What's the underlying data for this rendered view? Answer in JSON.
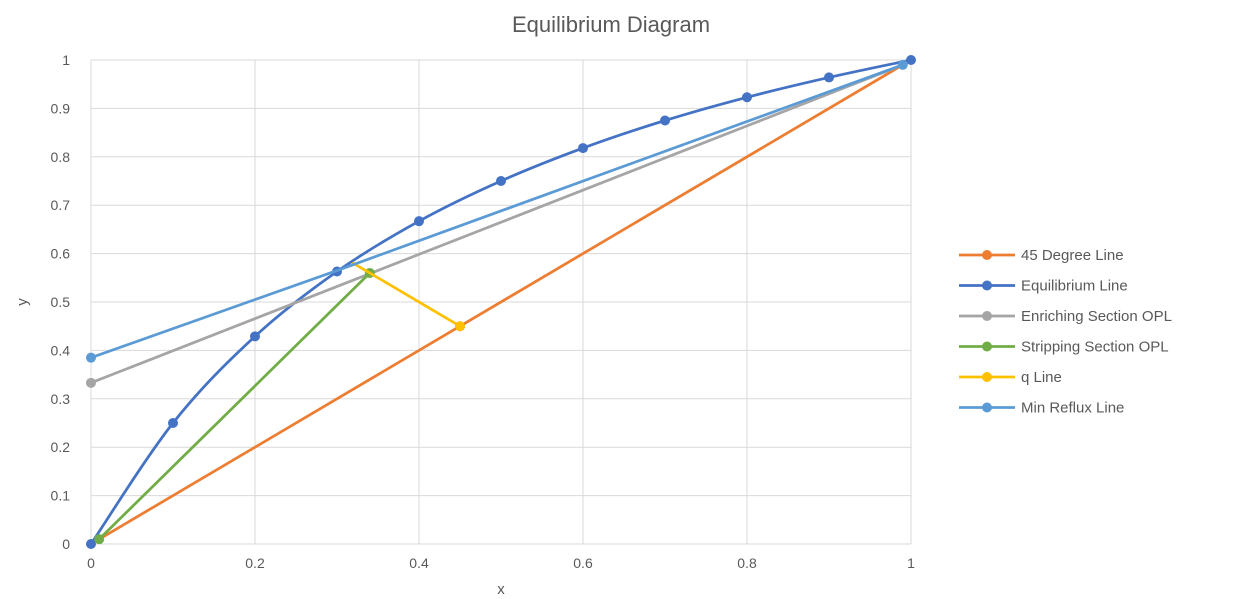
{
  "chart_data": {
    "type": "line",
    "title": "Equilibrium Diagram",
    "xlabel": "x",
    "ylabel": "y",
    "xlim": [
      0,
      1
    ],
    "ylim": [
      0,
      1
    ],
    "x_ticks": [
      "0",
      "0.2",
      "0.4",
      "0.6",
      "0.8",
      "1"
    ],
    "y_ticks": [
      "0",
      "0.1",
      "0.2",
      "0.3",
      "0.4",
      "0.5",
      "0.6",
      "0.7",
      "0.8",
      "0.9",
      "1"
    ],
    "x_tick_values": [
      0,
      0.2,
      0.4,
      0.6,
      0.8,
      1
    ],
    "y_tick_values": [
      0,
      0.1,
      0.2,
      0.3,
      0.4,
      0.5,
      0.6,
      0.7,
      0.8,
      0.9,
      1
    ],
    "grid": "vertical and horizontal",
    "legend_position": "right",
    "series": [
      {
        "name": "45 Degree Line",
        "color": "#ED7D31",
        "smooth": false,
        "points": [
          [
            0.01,
            0.01
          ],
          [
            0.45,
            0.45
          ],
          [
            0.99,
            0.99
          ]
        ],
        "markers": [
          [
            0.45,
            0.45
          ]
        ]
      },
      {
        "name": "Equilibrium Line",
        "color": "#4472C4",
        "smooth": true,
        "points": [
          [
            0,
            0
          ],
          [
            0.1,
            0.25
          ],
          [
            0.2,
            0.429
          ],
          [
            0.3,
            0.563
          ],
          [
            0.4,
            0.667
          ],
          [
            0.5,
            0.75
          ],
          [
            0.6,
            0.818
          ],
          [
            0.7,
            0.875
          ],
          [
            0.8,
            0.923
          ],
          [
            0.9,
            0.964
          ],
          [
            1,
            1
          ]
        ],
        "markers": [
          [
            0,
            0
          ],
          [
            0.1,
            0.25
          ],
          [
            0.2,
            0.429
          ],
          [
            0.3,
            0.563
          ],
          [
            0.4,
            0.667
          ],
          [
            0.5,
            0.75
          ],
          [
            0.6,
            0.818
          ],
          [
            0.7,
            0.875
          ],
          [
            0.8,
            0.923
          ],
          [
            0.9,
            0.964
          ],
          [
            1,
            1
          ]
        ]
      },
      {
        "name": "Enriching Section OPL",
        "color": "#A5A5A5",
        "smooth": false,
        "points": [
          [
            0,
            0.333
          ],
          [
            0.99,
            0.99
          ]
        ],
        "markers": [
          [
            0,
            0.333
          ]
        ]
      },
      {
        "name": "Stripping Section OPL",
        "color": "#70AD47",
        "smooth": false,
        "points": [
          [
            0.01,
            0.01
          ],
          [
            0.34,
            0.56
          ]
        ],
        "markers": [
          [
            0.01,
            0.01
          ],
          [
            0.34,
            0.56
          ]
        ]
      },
      {
        "name": "q Line",
        "color": "#FFC000",
        "smooth": false,
        "points": [
          [
            0.32,
            0.58
          ],
          [
            0.45,
            0.45
          ]
        ],
        "markers": [
          [
            0.45,
            0.45
          ]
        ]
      },
      {
        "name": "Min Reflux Line",
        "color": "#5B9BD5",
        "smooth": false,
        "points": [
          [
            0,
            0.385
          ],
          [
            0.3,
            0.565
          ],
          [
            0.99,
            0.99
          ]
        ],
        "markers": [
          [
            0,
            0.385
          ],
          [
            0.99,
            0.99
          ]
        ]
      }
    ]
  }
}
